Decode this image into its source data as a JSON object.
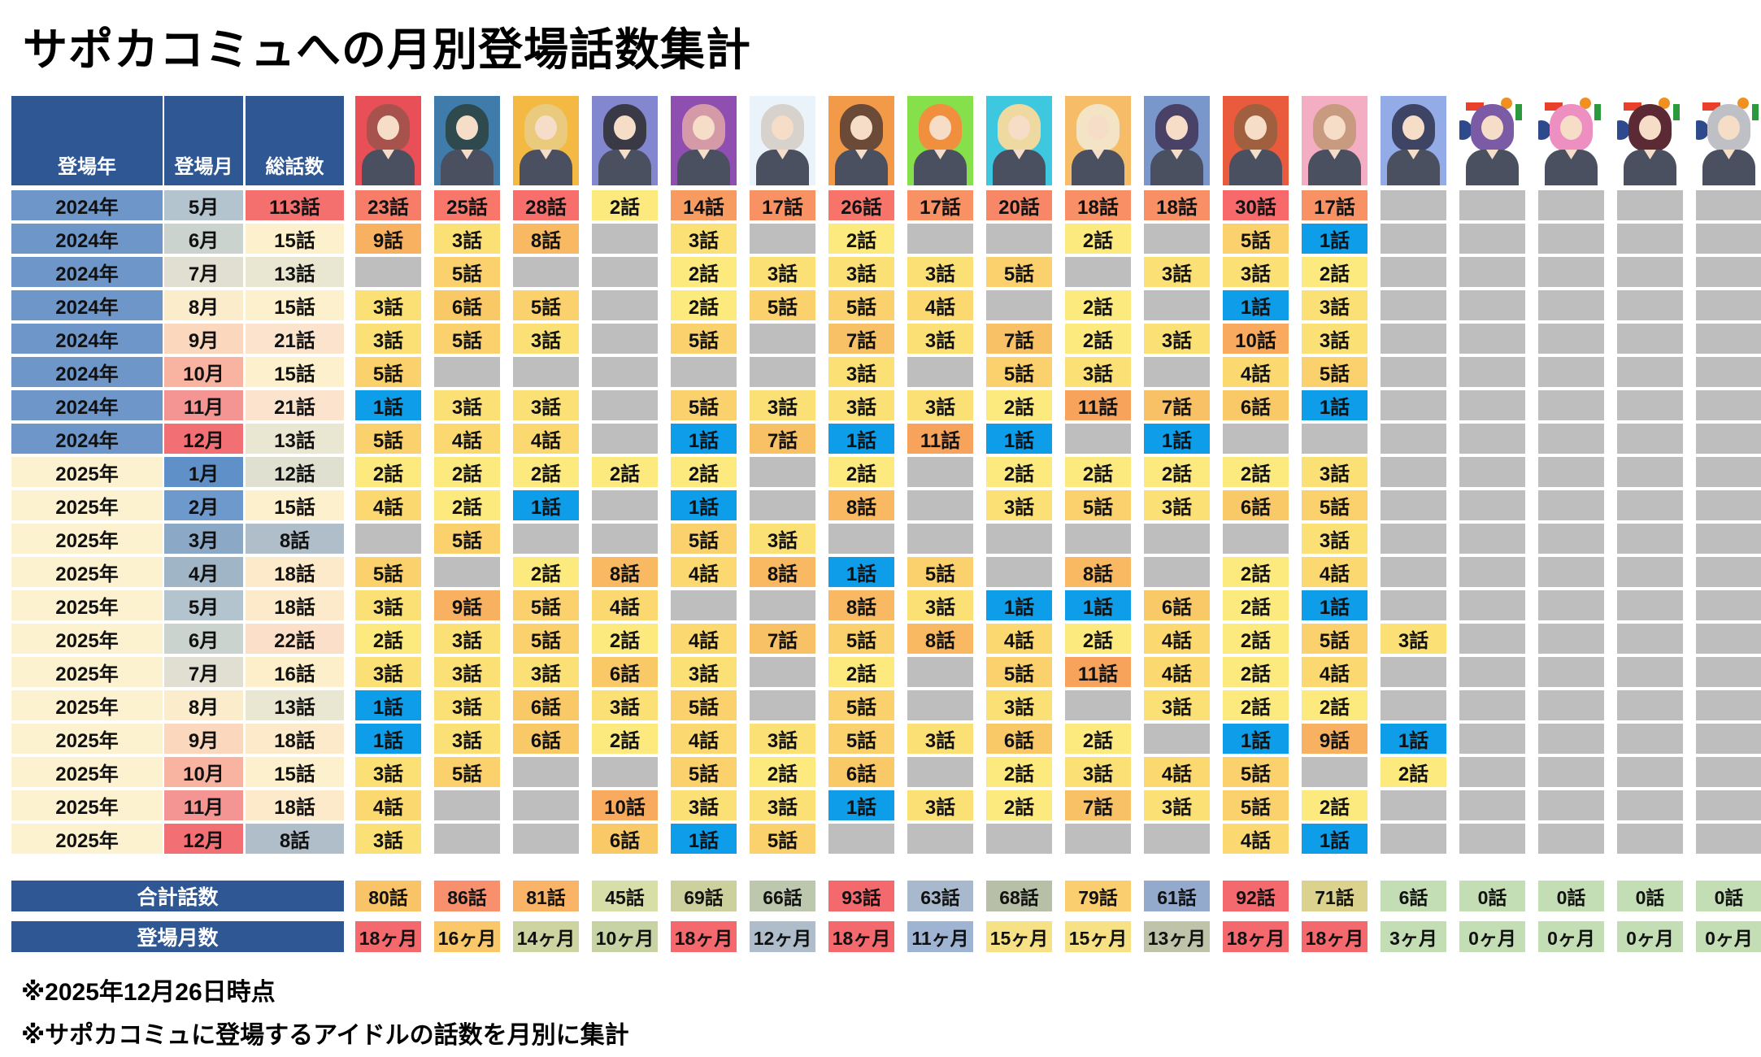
{
  "title": "サポカコミュへの月別登場話数集計",
  "columns": {
    "year": "登場年",
    "month": "登場月",
    "total": "総話数"
  },
  "footer": {
    "total_label": "合計話数",
    "months_label": "登場月数"
  },
  "notes": [
    "※2025年12月26日時点",
    "※サポカコミュに登場するアイドルの話数を月別に集計"
  ],
  "units": {
    "episode": "話",
    "months": "ヶ月"
  },
  "colors": {
    "navy": "#2E5793",
    "empty": "#BEBEBE",
    "year": {
      "2024年": "#6E96C8",
      "2025年": "#FDF2D0"
    },
    "month_scale": [
      "#6090C8",
      "#6E99CC",
      "#8BA9C7",
      "#A0B5C6",
      "#B3C4CE",
      "#CBD3CE",
      "#E0DFD2",
      "#FBEDCB",
      "#FAD7BD",
      "#F8B4A1",
      "#F59593",
      "#F26F74"
    ],
    "total_scale": {
      "8": "#AFBEC9",
      "12": "#DFE0D0",
      "13": "#E9E7D2",
      "15": "#FDF1CD",
      "16": "#FDEFCA",
      "18": "#FCEACA",
      "21": "#FBE3CD",
      "22": "#FBDFC8",
      "113": "#F3706F"
    },
    "value_scale": {
      "1": "#0D9DE9",
      "2": "#FCEA7E",
      "3": "#FBE175",
      "4": "#FBD970",
      "5": "#FAD16C",
      "6": "#F9C968",
      "7": "#F9C165",
      "8": "#F8B962",
      "9": "#F8B160",
      "10": "#F8AA5E",
      "11": "#F7A35C",
      "14": "#F89B60",
      "17": "#F89264",
      "18": "#F88F65",
      "20": "#F88767",
      "23": "#F87D69",
      "25": "#F8766A",
      "26": "#F8736A",
      "28": "#F86E6B",
      "30": "#F8696B"
    },
    "totals_row": [
      "#F9C368",
      "#F8906E",
      "#F9B468",
      "#D7DEA8",
      "#CBD09C",
      "#BDC7AD",
      "#F3696E",
      "#A9B9CD",
      "#B7BFA6",
      "#FACD6E",
      "#93AACD",
      "#F3696E",
      "#DBD28D",
      "#C3DDB4",
      "#C3DDB4",
      "#C3DDB4",
      "#C3DDB4",
      "#C3DDB4"
    ],
    "months_row": [
      "#F4696E",
      "#FBC76B",
      "#CDD3A1",
      "#C7D2A5",
      "#F4696E",
      "#AFBDCA",
      "#F4696E",
      "#9FB4D2",
      "#F6E285",
      "#F6E285",
      "#BEC3A9",
      "#F4696E",
      "#F4696E",
      "#C3DDB4",
      "#C3DDB4",
      "#C3DDB4",
      "#C3DDB4",
      "#C3DDB4"
    ],
    "mark_colors": [
      "#2E4A8C",
      "#E8402A",
      "#F09020",
      "#2A9A3C"
    ]
  },
  "characters": [
    {
      "avatar_bg": "#E94F57",
      "hair": "#A8524E",
      "marks": false
    },
    {
      "avatar_bg": "#3F7CAB",
      "hair": "#2E4A4E",
      "marks": false
    },
    {
      "avatar_bg": "#F4B942",
      "hair": "#EACB7E",
      "marks": false
    },
    {
      "avatar_bg": "#8287D0",
      "hair": "#3A3A46",
      "marks": false
    },
    {
      "avatar_bg": "#8E4FB0",
      "hair": "#D49AA8",
      "marks": false
    },
    {
      "avatar_bg": "#EAF3FA",
      "hair": "#D8D2CC",
      "marks": false
    },
    {
      "avatar_bg": "#F29A47",
      "hair": "#6B4A38",
      "marks": false
    },
    {
      "avatar_bg": "#86E04C",
      "hair": "#F0903E",
      "marks": false
    },
    {
      "avatar_bg": "#3EC8E0",
      "hair": "#EED9A0",
      "marks": false
    },
    {
      "avatar_bg": "#F6BC67",
      "hair": "#F2E4C4",
      "marks": false
    },
    {
      "avatar_bg": "#7A97CC",
      "hair": "#4A4266",
      "marks": false
    },
    {
      "avatar_bg": "#EA5B3E",
      "hair": "#A06040",
      "marks": false
    },
    {
      "avatar_bg": "#F4AEC3",
      "hair": "#C89A80",
      "marks": false
    },
    {
      "avatar_bg": "#93ACE8",
      "hair": "#3E4464",
      "marks": false
    },
    {
      "avatar_bg": "#FFFFFF",
      "hair": "#7B5AA6",
      "marks": true
    },
    {
      "avatar_bg": "#FFFFFF",
      "hair": "#ED8FC0",
      "marks": true
    },
    {
      "avatar_bg": "#FFFFFF",
      "hair": "#5C2A35",
      "marks": true
    },
    {
      "avatar_bg": "#FFFFFF",
      "hair": "#BFBFC6",
      "marks": true
    }
  ],
  "chart_data": {
    "type": "heatmap",
    "title": "サポカコミュへの月別登場話数集計",
    "column_count": 18,
    "rows": [
      {
        "year": "2024年",
        "month": "5月",
        "month_num": 5,
        "total": 113,
        "values": [
          23,
          25,
          28,
          2,
          14,
          17,
          26,
          17,
          20,
          18,
          18,
          30,
          17,
          null,
          null,
          null,
          null,
          null
        ]
      },
      {
        "year": "2024年",
        "month": "6月",
        "month_num": 6,
        "total": 15,
        "values": [
          9,
          3,
          8,
          null,
          3,
          null,
          2,
          null,
          null,
          2,
          null,
          5,
          1,
          null,
          null,
          null,
          null,
          null
        ]
      },
      {
        "year": "2024年",
        "month": "7月",
        "month_num": 7,
        "total": 13,
        "values": [
          null,
          5,
          null,
          null,
          2,
          3,
          3,
          3,
          5,
          null,
          3,
          3,
          2,
          null,
          null,
          null,
          null,
          null
        ]
      },
      {
        "year": "2024年",
        "month": "8月",
        "month_num": 8,
        "total": 15,
        "values": [
          3,
          6,
          5,
          null,
          2,
          5,
          5,
          4,
          null,
          2,
          null,
          1,
          3,
          null,
          null,
          null,
          null,
          null
        ]
      },
      {
        "year": "2024年",
        "month": "9月",
        "month_num": 9,
        "total": 21,
        "values": [
          3,
          5,
          3,
          null,
          5,
          null,
          7,
          3,
          7,
          2,
          3,
          10,
          3,
          null,
          null,
          null,
          null,
          null
        ]
      },
      {
        "year": "2024年",
        "month": "10月",
        "month_num": 10,
        "total": 15,
        "values": [
          5,
          null,
          null,
          null,
          null,
          null,
          3,
          null,
          5,
          3,
          null,
          4,
          5,
          null,
          null,
          null,
          null,
          null
        ]
      },
      {
        "year": "2024年",
        "month": "11月",
        "month_num": 11,
        "total": 21,
        "values": [
          1,
          3,
          3,
          null,
          5,
          3,
          3,
          3,
          2,
          11,
          7,
          6,
          1,
          null,
          null,
          null,
          null,
          null
        ]
      },
      {
        "year": "2024年",
        "month": "12月",
        "month_num": 12,
        "total": 13,
        "values": [
          5,
          4,
          4,
          null,
          1,
          7,
          1,
          11,
          1,
          null,
          1,
          null,
          null,
          null,
          null,
          null,
          null,
          null
        ]
      },
      {
        "year": "2025年",
        "month": "1月",
        "month_num": 1,
        "total": 12,
        "values": [
          2,
          2,
          2,
          2,
          2,
          null,
          2,
          null,
          2,
          2,
          2,
          2,
          3,
          null,
          null,
          null,
          null,
          null
        ]
      },
      {
        "year": "2025年",
        "month": "2月",
        "month_num": 2,
        "total": 15,
        "values": [
          4,
          2,
          1,
          null,
          1,
          null,
          8,
          null,
          3,
          5,
          3,
          6,
          5,
          null,
          null,
          null,
          null,
          null
        ]
      },
      {
        "year": "2025年",
        "month": "3月",
        "month_num": 3,
        "total": 8,
        "values": [
          null,
          5,
          null,
          null,
          5,
          3,
          null,
          null,
          null,
          null,
          null,
          null,
          3,
          null,
          null,
          null,
          null,
          null
        ]
      },
      {
        "year": "2025年",
        "month": "4月",
        "month_num": 4,
        "total": 18,
        "values": [
          5,
          null,
          2,
          8,
          4,
          8,
          1,
          5,
          null,
          8,
          null,
          2,
          4,
          null,
          null,
          null,
          null,
          null
        ]
      },
      {
        "year": "2025年",
        "month": "5月",
        "month_num": 5,
        "total": 18,
        "values": [
          3,
          9,
          5,
          4,
          null,
          null,
          8,
          3,
          1,
          1,
          6,
          2,
          1,
          null,
          null,
          null,
          null,
          null
        ]
      },
      {
        "year": "2025年",
        "month": "6月",
        "month_num": 6,
        "total": 22,
        "values": [
          2,
          3,
          5,
          2,
          4,
          7,
          5,
          8,
          4,
          2,
          4,
          2,
          5,
          3,
          null,
          null,
          null,
          null
        ]
      },
      {
        "year": "2025年",
        "month": "7月",
        "month_num": 7,
        "total": 16,
        "values": [
          3,
          3,
          3,
          6,
          3,
          null,
          2,
          null,
          5,
          11,
          4,
          2,
          4,
          null,
          null,
          null,
          null,
          null
        ]
      },
      {
        "year": "2025年",
        "month": "8月",
        "month_num": 8,
        "total": 13,
        "values": [
          1,
          3,
          6,
          3,
          5,
          null,
          5,
          null,
          3,
          null,
          3,
          2,
          2,
          null,
          null,
          null,
          null,
          null
        ]
      },
      {
        "year": "2025年",
        "month": "9月",
        "month_num": 9,
        "total": 18,
        "values": [
          1,
          3,
          6,
          2,
          4,
          3,
          5,
          3,
          6,
          2,
          null,
          1,
          9,
          1,
          null,
          null,
          null,
          null
        ]
      },
      {
        "year": "2025年",
        "month": "10月",
        "month_num": 10,
        "total": 15,
        "values": [
          3,
          5,
          null,
          null,
          5,
          2,
          6,
          null,
          2,
          3,
          4,
          5,
          null,
          2,
          null,
          null,
          null,
          null
        ]
      },
      {
        "year": "2025年",
        "month": "11月",
        "month_num": 11,
        "total": 18,
        "values": [
          4,
          null,
          null,
          10,
          3,
          3,
          1,
          3,
          2,
          7,
          3,
          5,
          2,
          null,
          null,
          null,
          null,
          null
        ]
      },
      {
        "year": "2025年",
        "month": "12月",
        "month_num": 12,
        "total": 8,
        "values": [
          3,
          null,
          null,
          6,
          1,
          5,
          null,
          null,
          null,
          null,
          null,
          4,
          1,
          null,
          null,
          null,
          null,
          null
        ]
      }
    ],
    "totals": [
      80,
      86,
      81,
      45,
      69,
      66,
      93,
      63,
      68,
      79,
      61,
      92,
      71,
      6,
      0,
      0,
      0,
      0
    ],
    "months_appeared": [
      18,
      16,
      14,
      10,
      18,
      12,
      18,
      11,
      15,
      15,
      13,
      18,
      18,
      3,
      0,
      0,
      0,
      0
    ]
  }
}
